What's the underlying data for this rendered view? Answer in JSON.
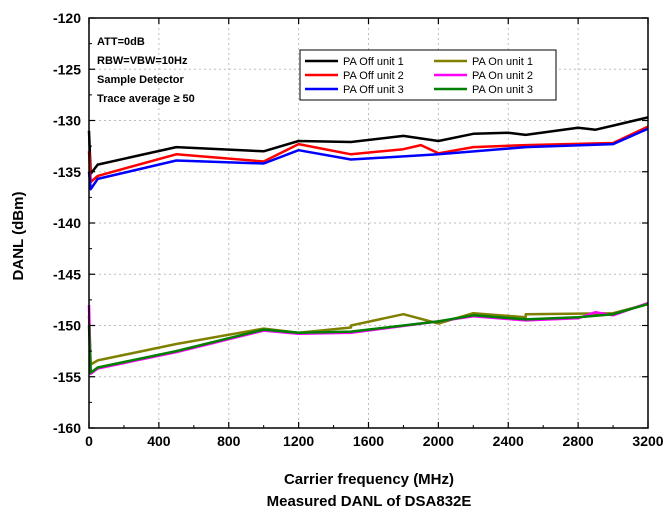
{
  "chart_data": {
    "type": "line",
    "xlabel": "Carrier frequency (MHz)",
    "ylabel": "DANL (dBm)",
    "caption": "Measured DANL of DSA832E",
    "xlim": [
      0,
      3200
    ],
    "ylim": [
      -160,
      -120
    ],
    "x_ticks": [
      "0",
      "400",
      "800",
      "1200",
      "1600",
      "2000",
      "2400",
      "2800",
      "3200"
    ],
    "y_ticks": [
      "-120",
      "-125",
      "-130",
      "-135",
      "-140",
      "-145",
      "-150",
      "-155",
      "-160"
    ],
    "grid": true,
    "legend_position": "top-right",
    "annotations": [
      "ATT=0dB",
      "RBW=VBW=10Hz",
      "Sample Detector",
      "Trace average ≥ 50"
    ],
    "series": [
      {
        "name": "PA Off unit 1",
        "color": "#000000",
        "x": [
          0,
          10,
          50,
          500,
          1000,
          1200,
          1500,
          1800,
          2000,
          2200,
          2400,
          2500,
          2800,
          2900,
          3000,
          3200
        ],
        "y": [
          -131,
          -135.2,
          -134.3,
          -132.6,
          -133.0,
          -132.0,
          -132.1,
          -131.5,
          -132.0,
          -131.3,
          -131.2,
          -131.4,
          -130.7,
          -130.9,
          -130.5,
          -129.7
        ]
      },
      {
        "name": "PA Off unit 2",
        "color": "#ff0000",
        "x": [
          0,
          10,
          50,
          500,
          1000,
          1200,
          1500,
          1800,
          1900,
          2000,
          2200,
          2500,
          3000,
          3200
        ],
        "y": [
          -133,
          -136.0,
          -135.4,
          -133.3,
          -134.0,
          -132.3,
          -133.3,
          -132.8,
          -132.4,
          -133.2,
          -132.6,
          -132.4,
          -132.2,
          -130.6
        ]
      },
      {
        "name": "PA Off unit 3",
        "color": "#0000ff",
        "x": [
          0,
          10,
          50,
          500,
          1000,
          1200,
          1500,
          2000,
          2500,
          3000,
          3200
        ],
        "y": [
          -135,
          -136.7,
          -135.7,
          -133.9,
          -134.2,
          -132.9,
          -133.8,
          -133.3,
          -132.6,
          -132.3,
          -130.8
        ]
      },
      {
        "name": "PA On unit 1",
        "color": "#808000",
        "x": [
          0,
          10,
          50,
          500,
          1000,
          1200,
          1500,
          1500,
          1800,
          2000,
          2200,
          2500,
          2500,
          3000,
          3200
        ],
        "y": [
          -149,
          -153.8,
          -153.4,
          -151.8,
          -150.3,
          -150.7,
          -150.2,
          -150.0,
          -148.9,
          -149.8,
          -148.8,
          -149.2,
          -148.9,
          -148.8,
          -147.9
        ]
      },
      {
        "name": "PA On unit 2",
        "color": "#ff00ff",
        "x": [
          0,
          10,
          50,
          500,
          1000,
          1200,
          1500,
          2000,
          2200,
          2500,
          2800,
          2900,
          3000,
          3200
        ],
        "y": [
          -148,
          -154.7,
          -154.2,
          -152.6,
          -150.5,
          -150.8,
          -150.7,
          -149.6,
          -149.1,
          -149.5,
          -149.3,
          -148.7,
          -149.0,
          -147.8
        ]
      },
      {
        "name": "PA On unit 3",
        "color": "#008000",
        "x": [
          0,
          10,
          50,
          500,
          1000,
          1200,
          1500,
          2000,
          2200,
          2500,
          2800,
          3000,
          3200
        ],
        "y": [
          -150,
          -154.6,
          -154.1,
          -152.5,
          -150.4,
          -150.7,
          -150.6,
          -149.6,
          -149.0,
          -149.4,
          -149.2,
          -148.9,
          -147.9
        ]
      }
    ]
  }
}
